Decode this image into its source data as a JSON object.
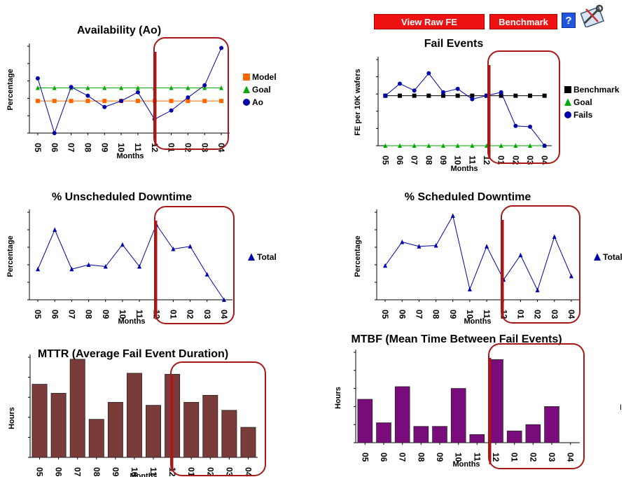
{
  "toolbar": {
    "view_raw_label": "View Raw FE",
    "benchmark_label": "Benchmark",
    "help_label": "?",
    "help_icon": "help-icon",
    "tool_icon": "tools-icon"
  },
  "stray_text": "I",
  "colors": {
    "blue": "#0000aa",
    "green": "#00aa00",
    "orange": "#ff6600",
    "black": "#000000",
    "mttr_bar": "#7a3b3b",
    "mtbf_bar": "#7a0b7a",
    "highlight": "#a81818",
    "button": "#ee1111"
  },
  "chart_data": [
    {
      "id": "availability",
      "type": "line",
      "title": "Availability (Ao)",
      "xlabel": "Months",
      "ylabel": "Percentage",
      "categories": [
        "05",
        "06",
        "07",
        "08",
        "09",
        "10",
        "11",
        "12",
        "01",
        "02",
        "03",
        "04"
      ],
      "ylim": [
        0,
        100
      ],
      "legend": "right",
      "series": [
        {
          "name": "Model",
          "marker": "square",
          "color": "#ff6600",
          "values": [
            37,
            37,
            37,
            37,
            37,
            37,
            37,
            37,
            37,
            37,
            37,
            37
          ]
        },
        {
          "name": "Goal",
          "marker": "triangle",
          "color": "#00aa00",
          "values": [
            52,
            52,
            52,
            52,
            52,
            52,
            52,
            52,
            52,
            52,
            52,
            52
          ]
        },
        {
          "name": "Ao",
          "marker": "circle",
          "color": "#0000aa",
          "values": [
            63,
            0,
            53,
            43,
            30,
            37,
            47,
            16,
            26,
            41,
            55,
            98
          ]
        }
      ]
    },
    {
      "id": "fail_events",
      "type": "line",
      "title": "Fail Events",
      "xlabel": "Months",
      "ylabel": "FE per 10K wafers",
      "categories": [
        "05",
        "06",
        "07",
        "08",
        "09",
        "10",
        "11",
        "12",
        "01",
        "02",
        "03",
        "04"
      ],
      "ylim": [
        0,
        100
      ],
      "legend": "right",
      "series": [
        {
          "name": "Benchmark",
          "marker": "square",
          "color": "#000000",
          "values": [
            58,
            58,
            58,
            58,
            58,
            58,
            58,
            58,
            58,
            58,
            58,
            58
          ]
        },
        {
          "name": "Goal",
          "marker": "triangle",
          "color": "#00aa00",
          "values": [
            0,
            0,
            0,
            0,
            0,
            0,
            0,
            0,
            0,
            0,
            0,
            0
          ]
        },
        {
          "name": "Fails",
          "marker": "circle",
          "color": "#0000aa",
          "values": [
            58,
            72,
            64,
            84,
            62,
            66,
            54,
            58,
            62,
            23,
            22,
            0
          ]
        }
      ]
    },
    {
      "id": "unscheduled",
      "type": "line",
      "title": "% Unscheduled Downtime",
      "xlabel": "Months",
      "ylabel": "Percentage",
      "categories": [
        "05",
        "06",
        "07",
        "08",
        "09",
        "10",
        "11",
        "12",
        "01",
        "02",
        "03",
        "04"
      ],
      "ylim": [
        0,
        100
      ],
      "legend": "right",
      "series": [
        {
          "name": "Total",
          "marker": "triangle",
          "color": "#0000aa",
          "values": [
            35,
            80,
            35,
            40,
            38,
            63,
            38,
            86,
            58,
            61,
            29,
            0
          ]
        }
      ]
    },
    {
      "id": "scheduled",
      "type": "line",
      "title": "% Scheduled Downtime",
      "xlabel": "Months",
      "ylabel": "Percentage",
      "categories": [
        "05",
        "06",
        "07",
        "08",
        "09",
        "10",
        "11",
        "12",
        "01",
        "02",
        "03",
        "04"
      ],
      "ylim": [
        0,
        100
      ],
      "legend": "right",
      "series": [
        {
          "name": "Total",
          "marker": "triangle",
          "color": "#0000aa",
          "values": [
            39,
            66,
            61,
            62,
            96,
            12,
            61,
            23,
            51,
            11,
            72,
            27
          ]
        }
      ]
    },
    {
      "id": "mttr",
      "type": "bar",
      "title": "MTTR (Average Fail Event Duration)",
      "xlabel": "Months",
      "ylabel": "Hours",
      "categories": [
        "05",
        "06",
        "07",
        "08",
        "09",
        "10",
        "11",
        "12",
        "01",
        "02",
        "03",
        "04"
      ],
      "ylim": [
        0,
        100
      ],
      "color": "#7a3b3b",
      "values": [
        73,
        64,
        98,
        38,
        55,
        84,
        52,
        83,
        55,
        62,
        47,
        30
      ]
    },
    {
      "id": "mtbf",
      "type": "bar",
      "title": "MTBF (Mean Time Between Fail Events)",
      "xlabel": "Months",
      "ylabel": "Hours",
      "categories": [
        "05",
        "06",
        "07",
        "08",
        "09",
        "10",
        "11",
        "12",
        "01",
        "02",
        "03",
        "04"
      ],
      "ylim": [
        0,
        100
      ],
      "color": "#7a0b7a",
      "values": [
        48,
        22,
        62,
        18,
        18,
        60,
        9,
        92,
        13,
        20,
        40,
        0
      ]
    }
  ]
}
